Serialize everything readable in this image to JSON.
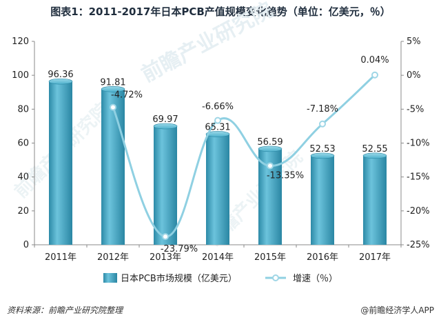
{
  "title": "图表1：2011-2017年日本PCB产值规模变化趋势（单位：亿美元，％）",
  "source": "资料来源：前瞻产业研究院整理",
  "brand": "@前瞻经济学人APP",
  "watermark": "前瞻产业研究院",
  "chart_data": {
    "type": "bar",
    "categories": [
      "2011年",
      "2012年",
      "2013年",
      "2014年",
      "2015年",
      "2016年",
      "2017年"
    ],
    "series": [
      {
        "name": "日本PCB市场规模（亿美元）",
        "type": "bar",
        "axis": "left",
        "color": "#3aa3c0",
        "values": [
          96.36,
          91.81,
          69.97,
          65.31,
          56.59,
          52.53,
          52.55
        ],
        "labels": [
          "96.36",
          "91.81",
          "69.97",
          "65.31",
          "56.59",
          "52.53",
          "52.55"
        ]
      },
      {
        "name": "增速（％）",
        "type": "line",
        "axis": "right",
        "color": "#8fd0e2",
        "values": [
          null,
          -4.72,
          -23.79,
          -6.66,
          -13.35,
          -7.18,
          0.04
        ],
        "labels": [
          "",
          "-4.72%",
          "-23.79%",
          "-6.66%",
          "-13.35%",
          "-7.18%",
          "0.04%"
        ]
      }
    ],
    "y_left": {
      "ylim": [
        0,
        120
      ],
      "ticks": [
        "0",
        "20",
        "40",
        "60",
        "80",
        "100",
        "120"
      ]
    },
    "y_right": {
      "ylim": [
        -25,
        5
      ],
      "ticks": [
        "-25%",
        "-20%",
        "-15%",
        "-10%",
        "-5%",
        "0%",
        "5%"
      ]
    },
    "grid": false,
    "legend": "bottom"
  }
}
